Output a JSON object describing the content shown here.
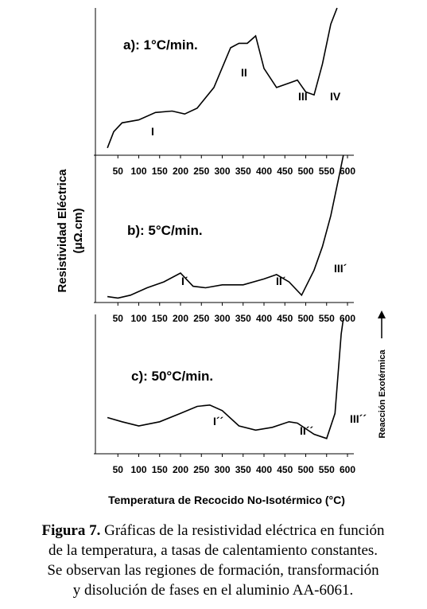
{
  "chart_data": [
    {
      "type": "line",
      "title": "a): 1°C/min.",
      "color": "#000000",
      "x": [
        25,
        40,
        60,
        100,
        140,
        180,
        210,
        240,
        280,
        320,
        340,
        360,
        380,
        400,
        430,
        460,
        480,
        500,
        520,
        540,
        560,
        575
      ],
      "values": [
        5,
        16,
        22,
        24,
        29,
        30,
        28,
        32,
        46,
        73,
        76,
        76,
        81,
        59,
        46,
        49,
        51,
        43,
        41,
        62,
        89,
        100
      ],
      "xlim": [
        0,
        600
      ],
      "ylim": [
        0,
        100
      ],
      "xticks": [
        50,
        100,
        150,
        200,
        250,
        300,
        350,
        400,
        450,
        500,
        550,
        600
      ],
      "annotations": [
        "I",
        "II",
        "III",
        "IV"
      ]
    },
    {
      "type": "line",
      "title": "b): 5°C/min.",
      "color": "#000000",
      "x": [
        25,
        50,
        80,
        120,
        160,
        200,
        230,
        260,
        300,
        350,
        400,
        430,
        460,
        490,
        520,
        540,
        560,
        580,
        590
      ],
      "values": [
        4,
        3,
        5,
        10,
        14,
        20,
        11,
        10,
        12,
        12,
        16,
        19,
        14,
        5,
        22,
        38,
        59,
        86,
        100
      ],
      "xlim": [
        0,
        600
      ],
      "ylim": [
        0,
        100
      ],
      "xticks": [
        50,
        100,
        150,
        200,
        250,
        300,
        350,
        400,
        450,
        500,
        550,
        600
      ],
      "annotations": [
        "I´",
        "II´",
        "III´"
      ]
    },
    {
      "type": "line",
      "title": "c): 50°C/min.",
      "color": "#000000",
      "x": [
        25,
        60,
        100,
        150,
        200,
        240,
        270,
        300,
        340,
        380,
        420,
        460,
        480,
        520,
        550,
        570,
        585,
        590
      ],
      "values": [
        26,
        23,
        20,
        23,
        29,
        34,
        35,
        31,
        20,
        17,
        19,
        23,
        22,
        14,
        11,
        29,
        86,
        97
      ],
      "xlim": [
        0,
        600
      ],
      "ylim": [
        0,
        100
      ],
      "xticks": [
        50,
        100,
        150,
        200,
        250,
        300,
        350,
        400,
        450,
        500,
        550,
        600
      ],
      "annotations": [
        "I´´",
        "II´´",
        "III´´"
      ]
    }
  ],
  "y_label": [
    "Resistividad Eléctrica",
    "(μΩ.cm)"
  ],
  "side_label": "Reacción Exotérmica",
  "x_label": "Temperatura de Recocido No-Isotérmico (°C)",
  "caption": {
    "label": "Figura 7.",
    "lines": [
      "Gráficas de la resistividad eléctrica en función",
      "de la temperatura, a tasas de calentamiento constantes.",
      "Se observan las regiones de formación, transformación",
      "y disolución de fases en el aluminio AA-6061."
    ]
  }
}
